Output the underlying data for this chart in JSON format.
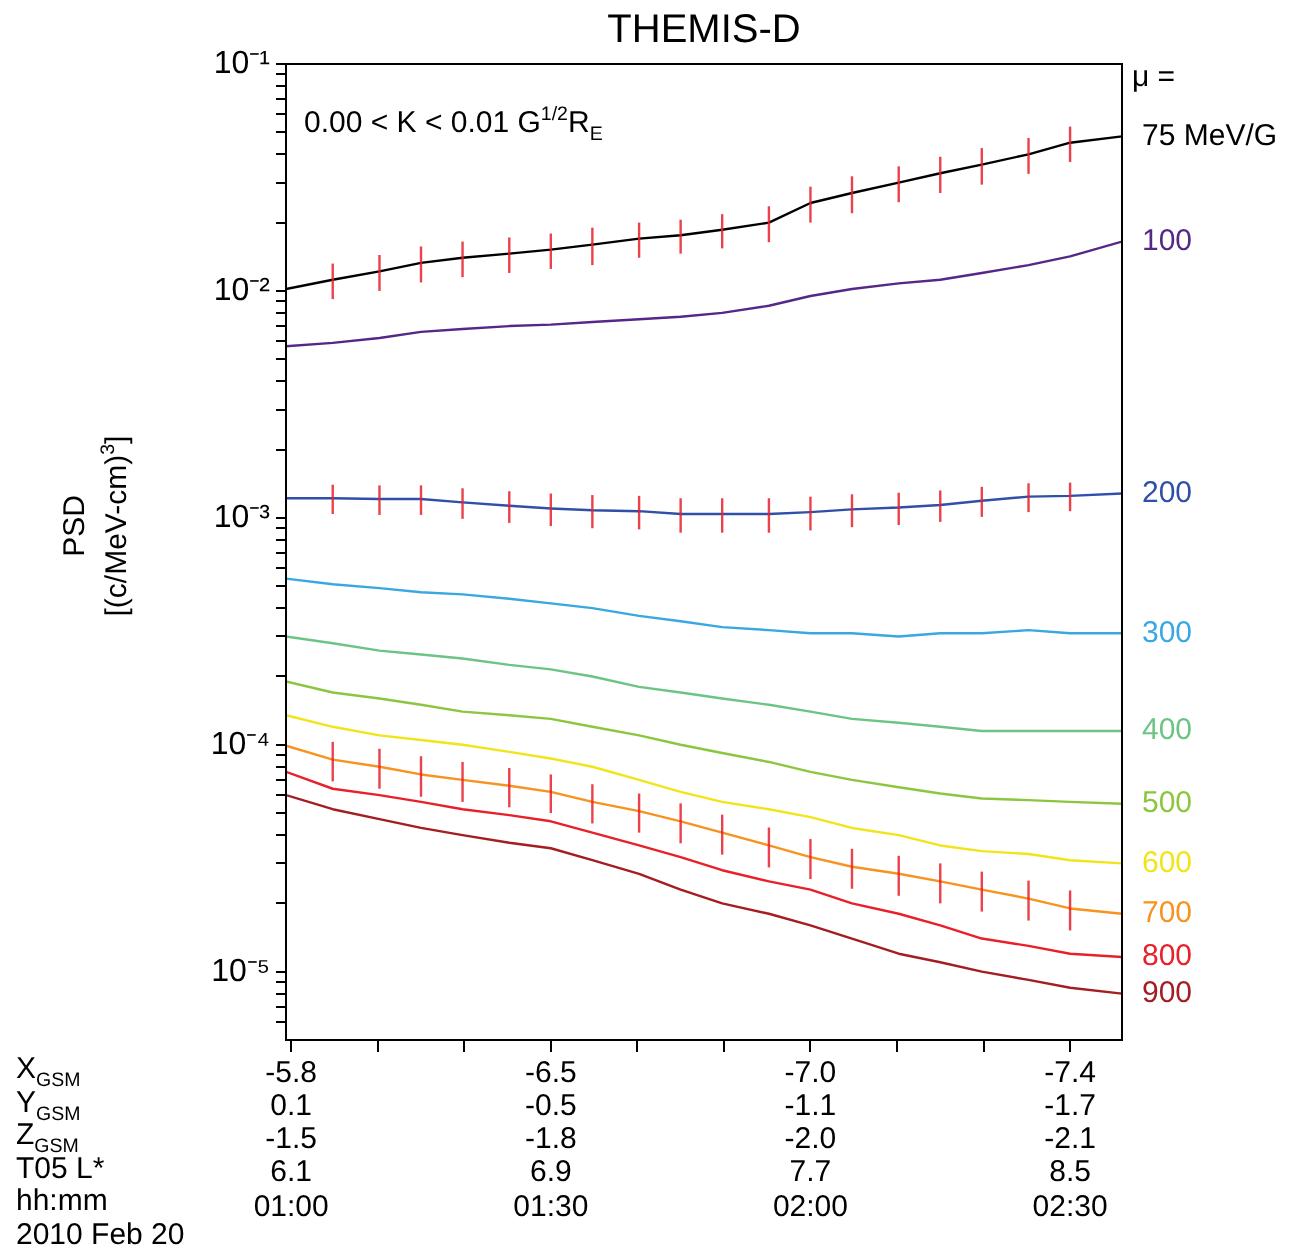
{
  "chart_data": {
    "type": "line",
    "title": "THEMIS-D",
    "ylabel": "PSD\n[(c/MeV-cm)$^{3}$]",
    "legend_title": "μ =",
    "annotations": [
      "0.00 < K < 0.01 G$^{1/2}$R$_{E}$",
      "X$_{GSM}$",
      "Y$_{GSM}$",
      "Z$_{GSM}$",
      "T05 L*",
      "hh:mm",
      "2010 Feb 20",
      "-5.8",
      "-6.5",
      "-7.0",
      "-7.4",
      "0.1",
      "-0.5",
      "-1.1",
      "-1.7",
      "-1.5",
      "-1.8",
      "-2.0",
      "-2.1",
      "6.1",
      "6.9",
      "7.7",
      "8.5"
    ],
    "x": [
      0.99,
      1.08,
      1.17,
      1.25,
      1.33,
      1.42,
      1.5,
      1.58,
      1.67,
      1.75,
      1.83,
      1.92,
      2.0,
      2.08,
      2.17,
      2.25,
      2.33,
      2.42,
      2.5,
      2.6
    ],
    "xlim": [
      0.99,
      2.6
    ],
    "xticks": [
      {
        "value": 1,
        "label": "01:00"
      },
      {
        "value": 1.1667,
        "label": null
      },
      {
        "value": 1.3333,
        "label": null
      },
      {
        "value": 1.5,
        "label": "01:30"
      },
      {
        "value": 1.6667,
        "label": null
      },
      {
        "value": 1.8333,
        "label": null
      },
      {
        "value": 2,
        "label": "02:00"
      },
      {
        "value": 2.1667,
        "label": null
      },
      {
        "value": 2.3333,
        "label": null
      },
      {
        "value": 2.5,
        "label": "02:30"
      }
    ],
    "log": "y",
    "ylim": [
      5e-06,
      0.1
    ],
    "yticks": [
      {
        "value": 6e-06,
        "label": null
      },
      {
        "value": 7e-06,
        "label": null
      },
      {
        "value": 8e-06,
        "label": null
      },
      {
        "value": 9e-06,
        "label": null
      },
      {
        "value": 1e-05,
        "label": "10⁻⁵"
      },
      {
        "value": 2e-05,
        "label": null
      },
      {
        "value": 3e-05,
        "label": null
      },
      {
        "value": 4e-05,
        "label": null
      },
      {
        "value": 5e-05,
        "label": null
      },
      {
        "value": 6e-05,
        "label": null
      },
      {
        "value": 7e-05,
        "label": null
      },
      {
        "value": 8e-05,
        "label": null
      },
      {
        "value": 9e-05,
        "label": null
      },
      {
        "value": 0.0001,
        "label": "10⁻⁴"
      },
      {
        "value": 0.0002,
        "label": null
      },
      {
        "value": 0.0003,
        "label": null
      },
      {
        "value": 0.0004,
        "label": null
      },
      {
        "value": 0.0005,
        "label": null
      },
      {
        "value": 0.0006,
        "label": null
      },
      {
        "value": 0.0007,
        "label": null
      },
      {
        "value": 0.0008,
        "label": null
      },
      {
        "value": 0.0009,
        "label": null
      },
      {
        "value": 0.001,
        "label": "10⁻³"
      },
      {
        "value": 0.002,
        "label": null
      },
      {
        "value": 0.003,
        "label": null
      },
      {
        "value": 0.004,
        "label": null
      },
      {
        "value": 0.005,
        "label": null
      },
      {
        "value": 0.006,
        "label": null
      },
      {
        "value": 0.007,
        "label": null
      },
      {
        "value": 0.008,
        "label": null
      },
      {
        "value": 0.009,
        "label": null
      },
      {
        "value": 0.01,
        "label": "10⁻²"
      },
      {
        "value": 0.02,
        "label": null
      },
      {
        "value": 0.03,
        "label": null
      },
      {
        "value": 0.04,
        "label": null
      },
      {
        "value": 0.05,
        "label": null
      },
      {
        "value": 0.06,
        "label": null
      },
      {
        "value": 0.07,
        "label": null
      },
      {
        "value": 0.08,
        "label": null
      },
      {
        "value": 0.09,
        "label": null
      },
      {
        "value": 0.1,
        "label": "10⁻¹"
      }
    ],
    "grid": false,
    "legend": false,
    "marker": "none",
    "line_style": "solid",
    "series": [
      {
        "name": "75 MeV/G",
        "color": "#000000",
        "values": [
          0.0102,
          0.0112,
          0.0122,
          0.0133,
          0.014,
          0.0146,
          0.0152,
          0.016,
          0.017,
          0.0176,
          0.0186,
          0.02,
          0.0244,
          0.027,
          0.03,
          0.033,
          0.036,
          0.04,
          0.045,
          0.048
        ],
        "errors": [
          null,
          0.002,
          0.0022,
          0.0024,
          0.0025,
          0.0026,
          0.0027,
          0.003,
          0.003,
          0.003,
          0.0032,
          0.0036,
          0.0044,
          0.005,
          0.0054,
          0.006,
          0.0066,
          0.0072,
          0.008,
          null
        ]
      },
      {
        "name": "100",
        "color": "#542788",
        "values": [
          0.0057,
          0.0059,
          0.0062,
          0.0066,
          0.0068,
          0.007,
          0.0071,
          0.0073,
          0.0075,
          0.0077,
          0.008,
          0.0086,
          0.0095,
          0.0102,
          0.0108,
          0.0112,
          0.012,
          0.013,
          0.0142,
          0.0165
        ]
      },
      {
        "name": "200",
        "color": "#2f4fa8",
        "values": [
          0.00122,
          0.00122,
          0.00121,
          0.00121,
          0.00117,
          0.00113,
          0.0011,
          0.00108,
          0.00107,
          0.00104,
          0.00104,
          0.00104,
          0.00106,
          0.00109,
          0.00111,
          0.00114,
          0.00119,
          0.00124,
          0.00125,
          0.00128
        ],
        "errors": [
          null,
          0.00018,
          0.00018,
          0.00018,
          0.00018,
          0.00018,
          0.00018,
          0.00018,
          0.00018,
          0.00018,
          0.00018,
          0.00018,
          0.00018,
          0.00018,
          0.00018,
          0.00018,
          0.00018,
          0.00018,
          0.00018,
          null
        ]
      },
      {
        "name": "300",
        "color": "#3aa8e0",
        "values": [
          0.00054,
          0.00051,
          0.00049,
          0.00047,
          0.00046,
          0.00044,
          0.00042,
          0.0004,
          0.00037,
          0.00035,
          0.00033,
          0.00032,
          0.00031,
          0.00031,
          0.0003,
          0.00031,
          0.00031,
          0.00032,
          0.00031,
          0.00031
        ]
      },
      {
        "name": "400",
        "color": "#6cc484",
        "values": [
          0.0003,
          0.00028,
          0.00026,
          0.00025,
          0.00024,
          0.000225,
          0.000215,
          0.0002,
          0.00018,
          0.00017,
          0.00016,
          0.00015,
          0.00014,
          0.00013,
          0.000125,
          0.00012,
          0.000115,
          0.000115,
          0.000115,
          0.000115
        ]
      },
      {
        "name": "500",
        "color": "#8cc63f",
        "values": [
          0.00019,
          0.00017,
          0.00016,
          0.00015,
          0.00014,
          0.000135,
          0.00013,
          0.00012,
          0.00011,
          0.0001,
          9.2e-05,
          8.4e-05,
          7.6e-05,
          7e-05,
          6.5e-05,
          6.1e-05,
          5.8e-05,
          5.7e-05,
          5.6e-05,
          5.5e-05
        ]
      },
      {
        "name": "600",
        "color": "#f2e41a",
        "values": [
          0.000135,
          0.00012,
          0.00011,
          0.000105,
          0.0001,
          9.3e-05,
          8.7e-05,
          8e-05,
          7e-05,
          6.2e-05,
          5.6e-05,
          5.2e-05,
          4.8e-05,
          4.3e-05,
          4e-05,
          3.6e-05,
          3.4e-05,
          3.3e-05,
          3.1e-05,
          3e-05
        ]
      },
      {
        "name": "700",
        "color": "#f7931e",
        "values": [
          9.9e-05,
          8.6e-05,
          8e-05,
          7.4e-05,
          7e-05,
          6.6e-05,
          6.2e-05,
          5.6e-05,
          5.1e-05,
          4.6e-05,
          4.1e-05,
          3.6e-05,
          3.2e-05,
          2.9e-05,
          2.7e-05,
          2.5e-05,
          2.3e-05,
          2.1e-05,
          1.9e-05,
          1.8e-05
        ],
        "errors": [
          null,
          1.7e-05,
          1.6e-05,
          1.5e-05,
          1.4e-05,
          1.3e-05,
          1.2e-05,
          1.1e-05,
          1e-05,
          9.2e-06,
          8.2e-06,
          7.2e-06,
          6.4e-06,
          5.8e-06,
          5.4e-06,
          5e-06,
          4.6e-06,
          4.2e-06,
          3.8e-06,
          null
        ]
      },
      {
        "name": "800",
        "color": "#e8202a",
        "values": [
          7.6e-05,
          6.4e-05,
          6e-05,
          5.6e-05,
          5.2e-05,
          4.9e-05,
          4.6e-05,
          4.1e-05,
          3.6e-05,
          3.2e-05,
          2.8e-05,
          2.5e-05,
          2.3e-05,
          2e-05,
          1.8e-05,
          1.6e-05,
          1.4e-05,
          1.3e-05,
          1.2e-05,
          1.16e-05
        ]
      },
      {
        "name": "900",
        "color": "#a31d22",
        "values": [
          6e-05,
          5.2e-05,
          4.7e-05,
          4.3e-05,
          4e-05,
          3.7e-05,
          3.5e-05,
          3.1e-05,
          2.7e-05,
          2.3e-05,
          2e-05,
          1.8e-05,
          1.6e-05,
          1.4e-05,
          1.2e-05,
          1.1e-05,
          1e-05,
          9.2e-06,
          8.5e-06,
          8e-06
        ]
      }
    ]
  }
}
